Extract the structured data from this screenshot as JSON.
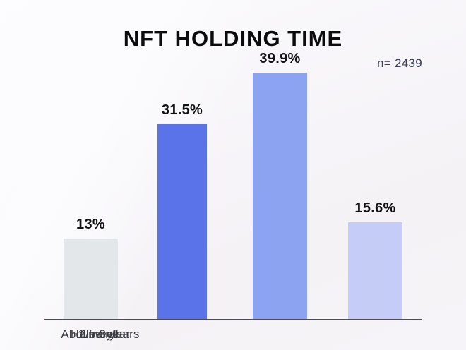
{
  "title": "NFT HOLDING TIME",
  "sample_size_label": "n= 2439",
  "chart_data": {
    "type": "bar",
    "title": "NFT HOLDING TIME",
    "sample_size": 2439,
    "categories": [
      "1 week",
      "1 month",
      "Half a year",
      "Above 3 years"
    ],
    "values": [
      13,
      31.5,
      39.9,
      15.6
    ],
    "value_labels": [
      "13%",
      "31.5%",
      "39.9%",
      "15.6%"
    ],
    "bar_colors": [
      "#e4e7e9",
      "#5a73e8",
      "#8ba3f1",
      "#c5cdf7"
    ],
    "xlabel": "",
    "ylabel": "",
    "ylim": [
      0,
      45
    ],
    "unit": "%",
    "grid": false,
    "legend": false,
    "axis_line_color": "#4c4c52",
    "background_color": "#f6f4f8"
  }
}
